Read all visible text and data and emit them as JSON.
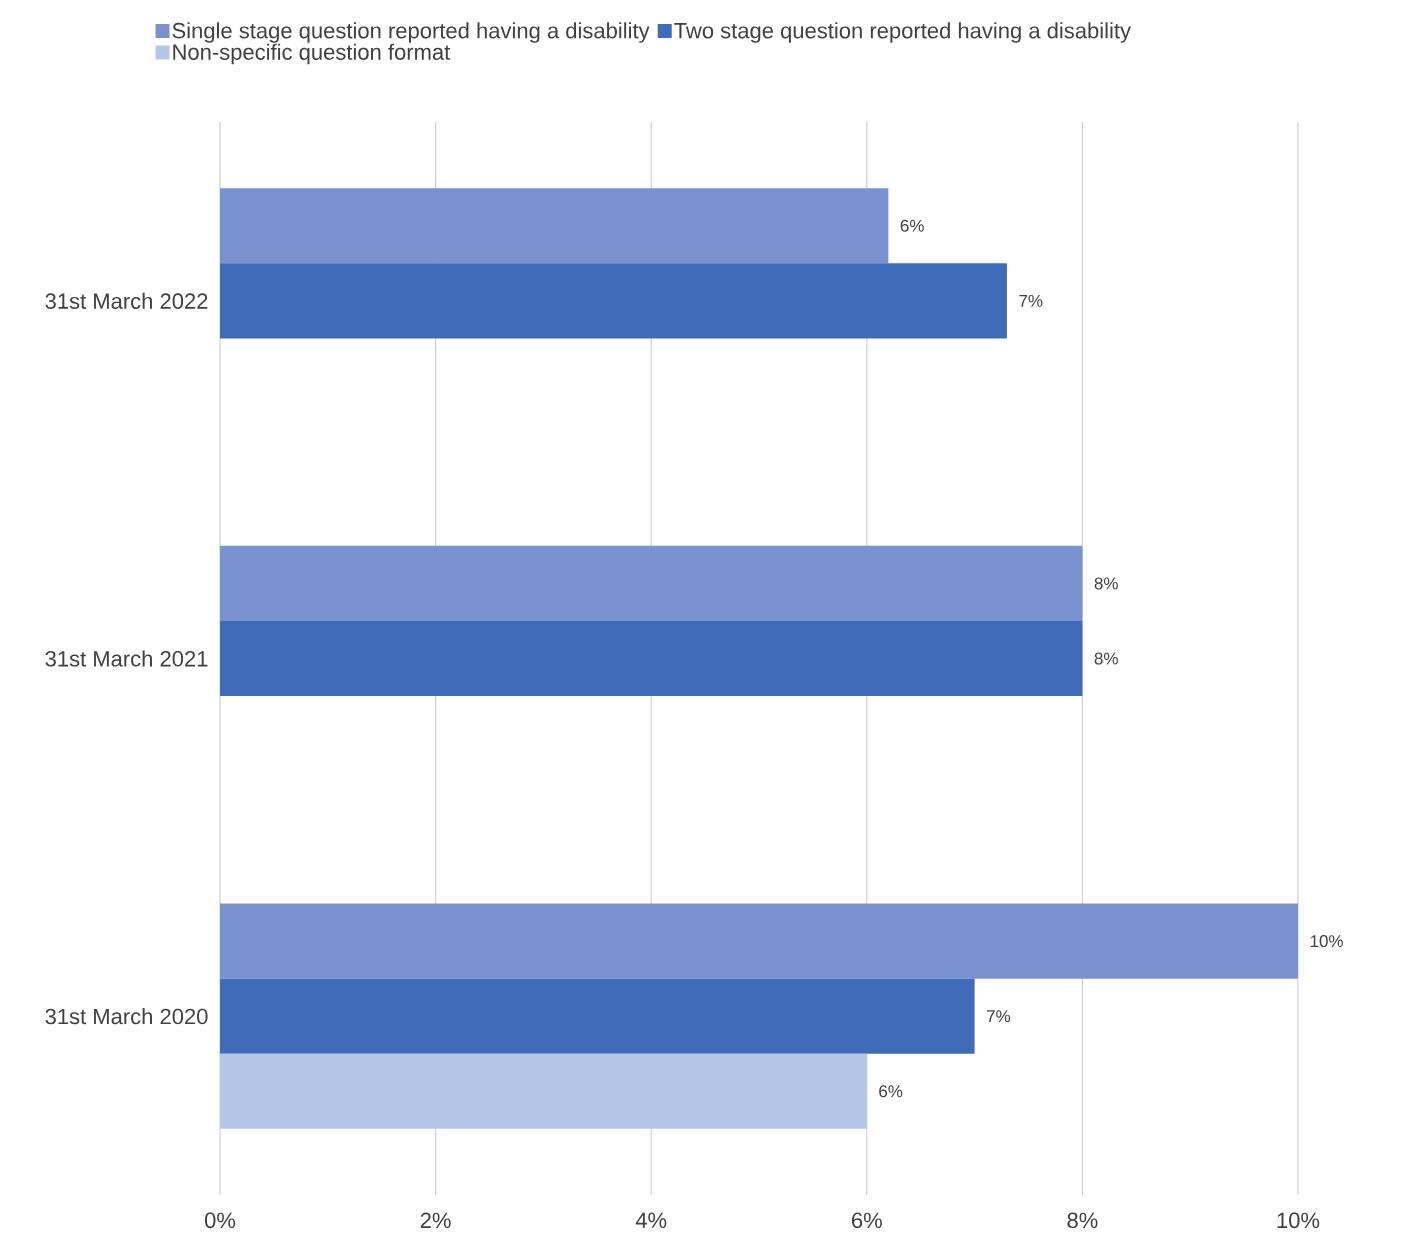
{
  "chart_data": {
    "type": "bar",
    "orientation": "horizontal",
    "categories": [
      "31st March 2022",
      "31st March 2021",
      "31st March 2020"
    ],
    "series": [
      {
        "name": "Single stage question reported having a disability",
        "color": "#7a93d0",
        "values": [
          6.2,
          8.0,
          10.0
        ],
        "value_labels": [
          "6%",
          "8%",
          "10%"
        ]
      },
      {
        "name": "Two stage question reported having a disability",
        "color": "#3f6bb8",
        "values": [
          7.3,
          8.0,
          7.0
        ],
        "value_labels": [
          "7%",
          "8%",
          "7%"
        ]
      },
      {
        "name": "Non-specific question format",
        "color": "#b4c7e6",
        "values": [
          null,
          null,
          6.0
        ],
        "value_labels": [
          null,
          null,
          "6%"
        ]
      }
    ],
    "xlim": [
      0,
      10
    ],
    "xticks": [
      {
        "value": 0,
        "label": "0%"
      },
      {
        "value": 2,
        "label": "2%"
      },
      {
        "value": 4,
        "label": "4%"
      },
      {
        "value": 6,
        "label": "6%"
      },
      {
        "value": 8,
        "label": "8%"
      },
      {
        "value": 10,
        "label": "10%"
      }
    ],
    "grid": "x",
    "legend": "top"
  }
}
